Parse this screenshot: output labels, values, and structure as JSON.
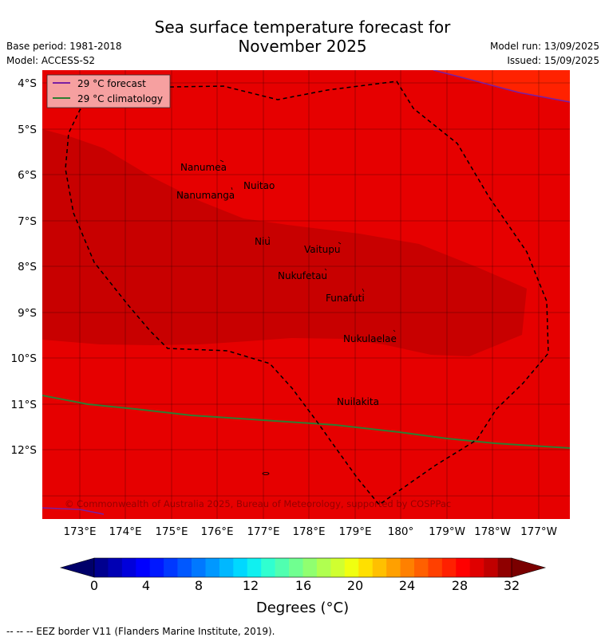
{
  "title": {
    "line1": "Sea surface temperature forecast for",
    "line2": "November 2025"
  },
  "meta": {
    "base_period": "Base period: 1981-2018",
    "model": "Model: ACCESS-S2",
    "model_run": "Model run: 13/09/2025",
    "issued": "Issued: 15/09/2025"
  },
  "legend": {
    "forecast": {
      "label": "29 °C  forecast",
      "color": "#7a1fa2"
    },
    "climatology": {
      "label": "29 °C  climatology",
      "color": "#2e7d32"
    }
  },
  "map": {
    "colors": {
      "sst_28_29": "#e60000",
      "sst_29_30": "#c80000",
      "sst_27_28": "#ff2200",
      "eez_border": "#000000",
      "forecast_isotherm": "#7a1fa2",
      "climatology_isotherm": "#2e7d32"
    },
    "lat_labels": [
      "4°S",
      "5°S",
      "6°S",
      "7°S",
      "8°S",
      "9°S",
      "10°S",
      "11°S",
      "12°S"
    ],
    "lon_labels": [
      "173°E",
      "174°E",
      "175°E",
      "176°E",
      "177°E",
      "178°E",
      "179°E",
      "180°",
      "179°W",
      "178°W",
      "177°W"
    ],
    "places": [
      {
        "name": "Nanumea"
      },
      {
        "name": "Nuitao"
      },
      {
        "name": "Nanumanga"
      },
      {
        "name": "Niu"
      },
      {
        "name": "Vaitupu"
      },
      {
        "name": "Nukufetau"
      },
      {
        "name": "Funafuti"
      },
      {
        "name": "Nukulaelae"
      },
      {
        "name": "Nuilakita"
      }
    ],
    "copyright": "© Commonwealth of Australia 2025, Bureau of Meteorology, supported by COSPPac"
  },
  "colorbar": {
    "tick_labels": [
      "0",
      "4",
      "8",
      "12",
      "16",
      "20",
      "24",
      "28",
      "32"
    ],
    "unit_label": "Degrees (°C)",
    "colors": [
      "#00008f",
      "#0000b4",
      "#0000db",
      "#0000ff",
      "#0018ff",
      "#0038ff",
      "#0058ff",
      "#0078ff",
      "#0098ff",
      "#00b8ff",
      "#00d8ff",
      "#10f0f0",
      "#30ffd0",
      "#50ffb0",
      "#70ff90",
      "#90ff70",
      "#b0ff50",
      "#d0ff30",
      "#f0ff10",
      "#ffe000",
      "#ffc000",
      "#ffa000",
      "#ff8000",
      "#ff6000",
      "#ff4000",
      "#ff2000",
      "#ff0000",
      "#e00000",
      "#c00000",
      "#8f0000"
    ],
    "under_color": "#00006a",
    "over_color": "#7a0000"
  },
  "footnote": "--  --  -- EEZ border V11 (Flanders Marine Institute, 2019)."
}
